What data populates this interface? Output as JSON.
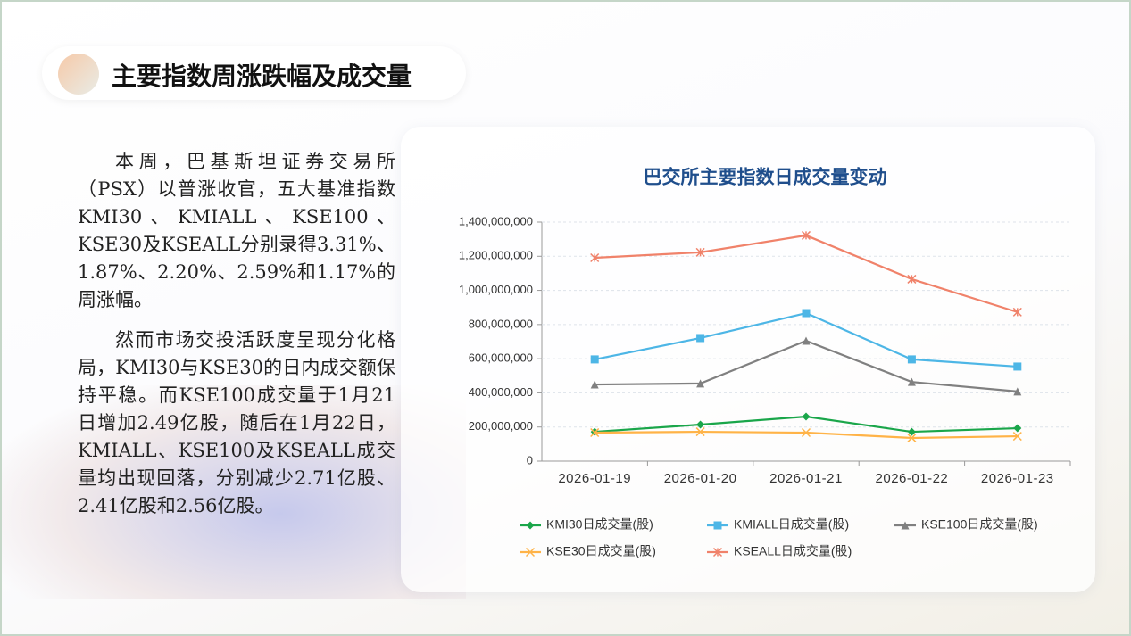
{
  "header": {
    "title": "主要指数周涨跌幅及成交量"
  },
  "paragraphs": [
    "本周，巴基斯坦证券交易所（PSX）以普涨收官，五大基准指数KMI30、KMIALL、KSE100、KSE30及KSEALL分别录得3.31%、1.87%、2.20%、2.59%和1.17%的周涨幅。",
    "然而市场交投活跃度呈现分化格局，KMI30与KSE30的日内成交额保持平稳。而KSE100成交量于1月21日增加2.49亿股，随后在1月22日，KMIALL、KSE100及KSEALL成交量均出现回落，分别减少2.71亿股、2.41亿股和2.56亿股。"
  ],
  "chart_data": {
    "type": "line",
    "title": "巴交所主要指数日成交量变动",
    "categories": [
      "2026-01-19",
      "2026-01-20",
      "2026-01-21",
      "2026-01-22",
      "2026-01-23"
    ],
    "series": [
      {
        "name": "KMI30日成交量(股)",
        "color": "#1aa64a",
        "marker": "diamond",
        "values": [
          172000000,
          214000000,
          261000000,
          172000000,
          193000000
        ]
      },
      {
        "name": "KMIALL日成交量(股)",
        "color": "#4db6e6",
        "marker": "square",
        "values": [
          596000000,
          721000000,
          867000000,
          596000000,
          554000000
        ]
      },
      {
        "name": "KSE100日成交量(股)",
        "color": "#808080",
        "marker": "triangle",
        "values": [
          449000000,
          455000000,
          705000000,
          464000000,
          408000000
        ]
      },
      {
        "name": "KSE30日成交量(股)",
        "color": "#ffb347",
        "marker": "x",
        "values": [
          167000000,
          172000000,
          167000000,
          136000000,
          146000000
        ]
      },
      {
        "name": "KSEALL日成交量(股)",
        "color": "#f0826a",
        "marker": "asterisk",
        "values": [
          1191000000,
          1223000000,
          1322000000,
          1066000000,
          873000000
        ]
      }
    ],
    "ylim": [
      0,
      1400000000
    ],
    "yticks": [
      0,
      {
        "value": 200000000,
        "label": "200,000,000"
      },
      {
        "value": 400000000,
        "label": "400,000,000"
      },
      {
        "value": 600000000,
        "label": "600,000,000"
      },
      {
        "value": 800000000,
        "label": "800,000,000"
      },
      {
        "value": 1000000000,
        "label": "1,000,000,000"
      },
      {
        "value": 1200000000,
        "label": "1,200,000,000"
      },
      {
        "value": 1400000000,
        "label": "1,400,000,000"
      }
    ],
    "grid": true
  }
}
